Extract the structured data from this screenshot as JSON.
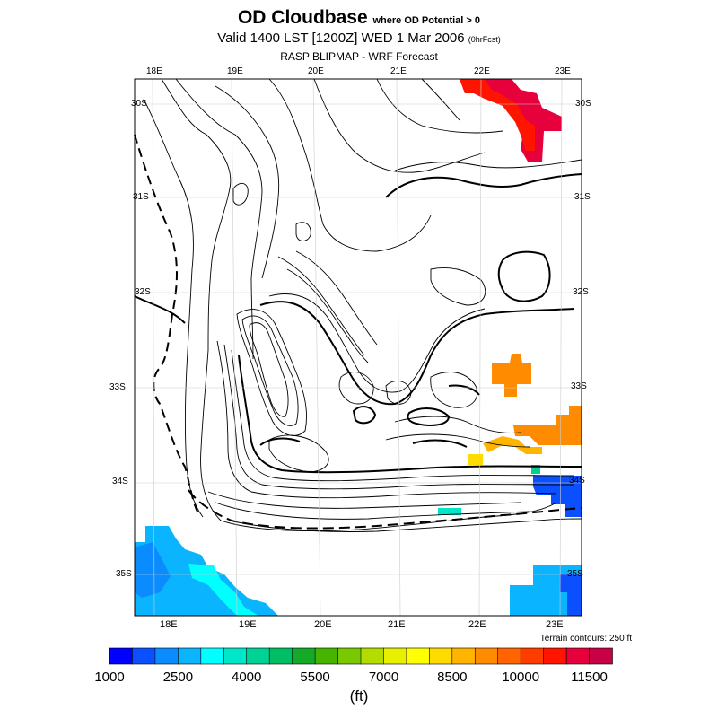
{
  "title": {
    "main": "OD Cloudbase",
    "condition": "where OD Potential > 0",
    "valid": "Valid 1400 LST [1200Z] WED 1 Mar 2006",
    "forecast_tag": "(0hrFcst)",
    "source": "RASP BLIPMAP - WRF Forecast"
  },
  "map": {
    "lon_labels_top": [
      "18E",
      "19E",
      "20E",
      "21E",
      "22E",
      "23E"
    ],
    "lon_labels_bottom": [
      "18E",
      "19E",
      "20E",
      "21E",
      "22E",
      "23E"
    ],
    "lat_labels_left": [
      "30S",
      "31S",
      "32S",
      "33S",
      "34S",
      "35S"
    ],
    "lat_labels_right": [
      "30S",
      "31S",
      "32S",
      "33S",
      "34S",
      "35S"
    ],
    "terrain_note": "Terrain contours: 250 ft"
  },
  "colorbar": {
    "colors": [
      "#0000ff",
      "#0a50ff",
      "#0a8cff",
      "#0ab4ff",
      "#00ffff",
      "#00e6c8",
      "#00d296",
      "#00be64",
      "#14aa28",
      "#46b400",
      "#7ac800",
      "#b4dc00",
      "#e6f000",
      "#ffff00",
      "#ffdc00",
      "#ffb400",
      "#ff8c00",
      "#ff6400",
      "#ff3c00",
      "#ff1400",
      "#e6003c",
      "#c80046"
    ],
    "tick_labels": [
      "1000",
      "2500",
      "4000",
      "5500",
      "7000",
      "8500",
      "10000",
      "11500"
    ],
    "units": "(ft)"
  }
}
